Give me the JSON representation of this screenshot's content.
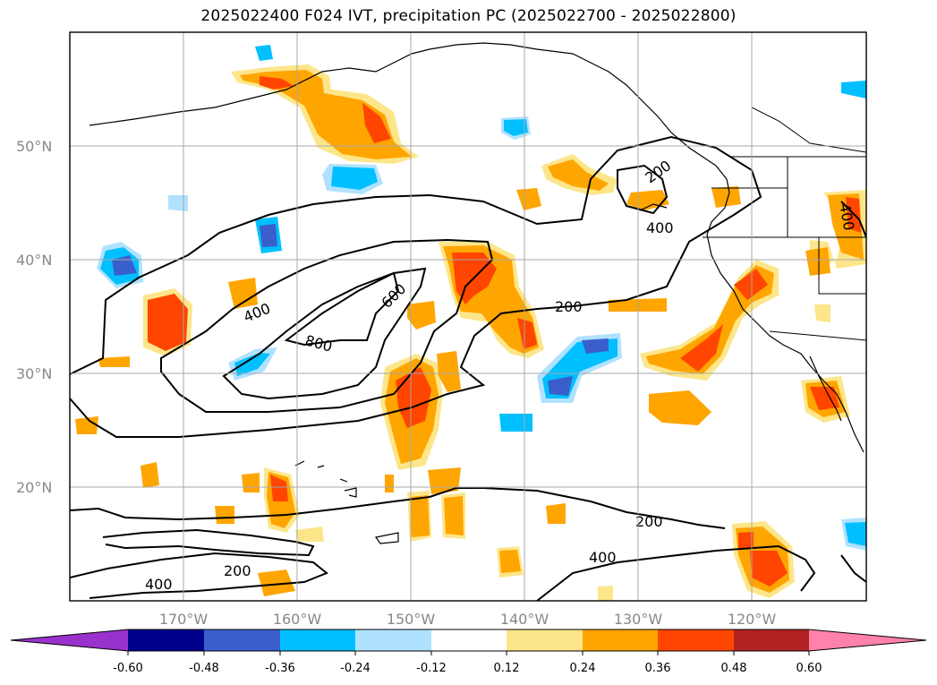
{
  "title": "2025022400 F024 IVT, precipitation PC (2025022700 - 2025022800)",
  "map": {
    "lat_labels": [
      "50°N",
      "40°N",
      "30°N",
      "20°N"
    ],
    "lon_labels": [
      "170°W",
      "160°W",
      "150°W",
      "140°W",
      "130°W",
      "120°W"
    ],
    "lat_range": [
      10,
      60
    ],
    "lon_range": [
      -180,
      -110
    ],
    "grid": true
  },
  "ivt_contours": {
    "levels": [
      200,
      400,
      600,
      800
    ],
    "labels": [
      {
        "text": "200",
        "lon": -129,
        "lat": 46.5
      },
      {
        "text": "400",
        "lon": -128,
        "lat": 43
      },
      {
        "text": "200",
        "lon": -138.5,
        "lat": 34.5
      },
      {
        "text": "600",
        "lon": -149.5,
        "lat": 36.5
      },
      {
        "text": "400",
        "lon": -164,
        "lat": 35
      },
      {
        "text": "800",
        "lon": -158.5,
        "lat": 32.5
      },
      {
        "text": "200",
        "lon": -130,
        "lat": 17
      },
      {
        "text": "400",
        "lon": -135.5,
        "lat": 13.5
      },
      {
        "text": "200",
        "lon": -164.5,
        "lat": 12.5
      },
      {
        "text": "400",
        "lon": -172,
        "lat": 11.5
      },
      {
        "text": "400",
        "lon": -112,
        "lat": 43.5
      }
    ]
  },
  "colorbar": {
    "ticks": [
      "-0.60",
      "-0.48",
      "-0.36",
      "-0.24",
      "-0.12",
      "0.12",
      "0.24",
      "0.36",
      "0.48",
      "0.60"
    ],
    "colors": [
      "#9932cc",
      "#00008b",
      "#3a5fcd",
      "#00bfff",
      "#b0e2ff",
      "#ffffff",
      "#fde68a",
      "#ffa500",
      "#ff4500",
      "#b22222",
      "#ff82ab"
    ],
    "extend": "both"
  }
}
